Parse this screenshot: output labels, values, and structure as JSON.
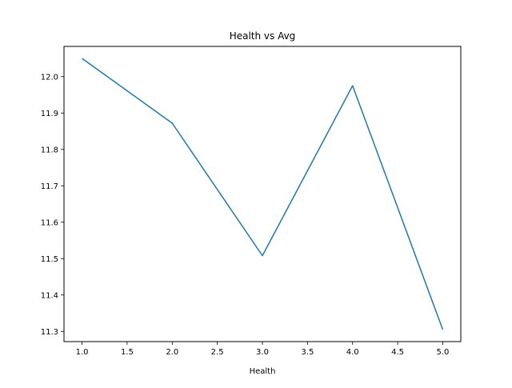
{
  "chart_data": {
    "type": "line",
    "title": "Health vs Avg",
    "xlabel": "Health",
    "ylabel": "",
    "x": [
      1.0,
      2.0,
      3.0,
      4.0,
      5.0
    ],
    "series": [
      {
        "values": [
          12.05,
          11.872,
          11.508,
          11.975,
          11.305
        ],
        "color": "#1f77b4"
      }
    ],
    "xlim": [
      0.8,
      5.2
    ],
    "ylim": [
      11.272,
      12.083
    ],
    "xticks": [
      "1.0",
      "1.5",
      "2.0",
      "2.5",
      "3.0",
      "3.5",
      "4.0",
      "4.5",
      "5.0"
    ],
    "yticks": [
      "11.3",
      "11.4",
      "11.5",
      "11.6",
      "11.7",
      "11.8",
      "11.9",
      "12.0"
    ],
    "grid": false
  }
}
